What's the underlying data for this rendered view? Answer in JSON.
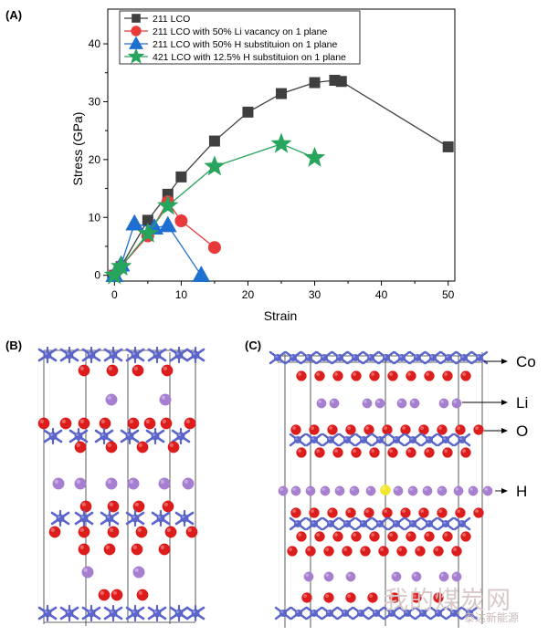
{
  "panels": {
    "a_label": "(A)",
    "b_label": "(B)",
    "c_label": "(C)"
  },
  "chart_data": {
    "type": "line",
    "xlabel": "Strain",
    "ylabel": "Stress (GPa)",
    "xlim": [
      -1,
      51
    ],
    "ylim": [
      -1,
      46
    ],
    "x_ticks": [
      0,
      10,
      20,
      30,
      40,
      50
    ],
    "y_ticks": [
      0,
      10,
      20,
      30,
      40
    ],
    "grid": false,
    "legend_position": "top-left",
    "series": [
      {
        "name": "211 LCO",
        "color": "#3f3f3f",
        "marker": "square",
        "x": [
          0,
          1,
          5,
          8,
          10,
          15,
          20,
          25,
          30,
          33,
          34,
          50
        ],
        "y": [
          0,
          1.5,
          9.5,
          14,
          17,
          23.2,
          28.2,
          31.4,
          33.3,
          33.7,
          33.5,
          22.2
        ]
      },
      {
        "name": "211 LCO with 50% Li vacancy on 1 plane",
        "color": "#e8393b",
        "marker": "circle",
        "x": [
          0,
          1,
          5,
          8,
          10,
          15
        ],
        "y": [
          0,
          1.5,
          6.8,
          12.7,
          9.4,
          4.8
        ]
      },
      {
        "name": "211 LCO with 50% H substituion on 1 plane",
        "color": "#1f6fd1",
        "marker": "triangle",
        "x": [
          0,
          1,
          3,
          6,
          8,
          13
        ],
        "y": [
          0,
          1.8,
          8.9,
          8.2,
          8.6,
          0
        ]
      },
      {
        "name": "421 LCO with 12.5% H substituion on 1 plane",
        "color": "#28a55d",
        "marker": "star",
        "x": [
          0,
          1,
          5,
          8,
          15,
          25,
          30
        ],
        "y": [
          0,
          1.5,
          7.2,
          12.0,
          18.8,
          22.7,
          20.3
        ]
      }
    ]
  },
  "structure_c": {
    "labels": [
      "Co",
      "Li",
      "O",
      "H"
    ]
  },
  "atom_colors": {
    "co": "#5c65c9",
    "o": "#dd1c1c",
    "li": "#a77fd0",
    "h": "#f0e62a"
  },
  "watermark": {
    "text": "我的煤炭网",
    "subtext": "泰达新能源"
  }
}
